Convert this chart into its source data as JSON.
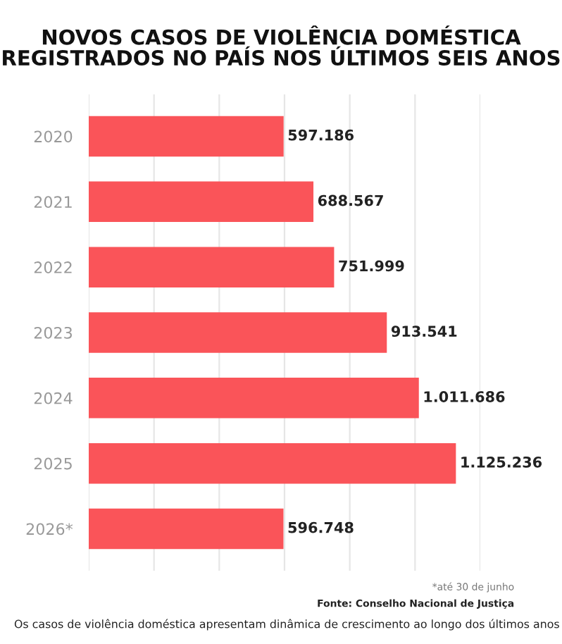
{
  "chart_data": {
    "type": "bar",
    "orientation": "horizontal",
    "title": "NOVOS CASOS DE VIOLÊNCIA DOMÉSTICA\nREGISTRADOS NO PAÍS NOS ÚLTIMOS SEIS ANOS",
    "categories": [
      "2020",
      "2021",
      "2022",
      "2023",
      "2024",
      "2025",
      "2026*"
    ],
    "values": [
      597186,
      688567,
      751999,
      913541,
      1011686,
      1125236,
      596748
    ],
    "value_labels": [
      "597.186",
      "688.567",
      "751.999",
      "913.541",
      "1.011.686",
      "1.125.236",
      "596.748"
    ],
    "color": "#fa5459",
    "xlim": [
      0,
      1200000
    ],
    "xticks": [
      {
        "value": 0,
        "label": null
      },
      {
        "value": 200000,
        "label": null
      },
      {
        "value": 400000,
        "label": null
      },
      {
        "value": 600000,
        "label": null
      },
      {
        "value": 800000,
        "label": null
      },
      {
        "value": 1000000,
        "label": null
      },
      {
        "value": 1200000,
        "label": null
      }
    ],
    "grid": "x",
    "tick_labels": "y",
    "annotations": [
      "*até 30 de junho",
      "Fonte: Conselho Nacional de Justiça",
      "Os casos de violência doméstica apresentam dinâmica de crescimento ao longo dos últimos anos"
    ]
  }
}
